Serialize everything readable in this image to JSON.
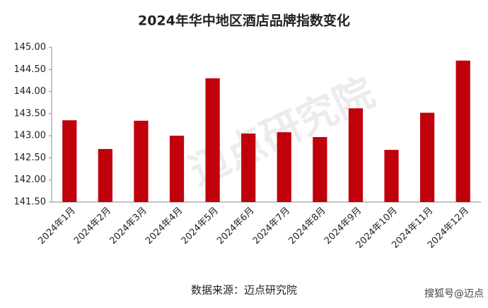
{
  "chart_data": {
    "type": "bar",
    "title": "2024年华中地区酒店品牌指数变化",
    "categories": [
      "2024年1月",
      "2024年2月",
      "2024年3月",
      "2024年4月",
      "2024年5月",
      "2024年6月",
      "2024年7月",
      "2024年8月",
      "2024年9月",
      "2024年10月",
      "2024年11月",
      "2024年12月"
    ],
    "values": [
      143.35,
      142.7,
      143.34,
      143.0,
      144.3,
      143.05,
      143.08,
      142.97,
      143.62,
      142.68,
      143.52,
      144.7
    ],
    "color": "#c0000b",
    "ylim": [
      141.5,
      145
    ],
    "yticks": [
      {
        "value": 141.5,
        "label": "141.50"
      },
      {
        "value": 142,
        "label": "142.00"
      },
      {
        "value": 142.5,
        "label": "142.50"
      },
      {
        "value": 143,
        "label": "143.00"
      },
      {
        "value": 143.5,
        "label": "143.50"
      },
      {
        "value": 144,
        "label": "144.00"
      },
      {
        "value": 144.5,
        "label": "144.50"
      },
      {
        "value": 145,
        "label": "145.00"
      }
    ],
    "grid": false,
    "source": "数据来源：迈点研究院",
    "watermark": "迈点研究院",
    "corner_mark": "搜狐号@迈点"
  }
}
